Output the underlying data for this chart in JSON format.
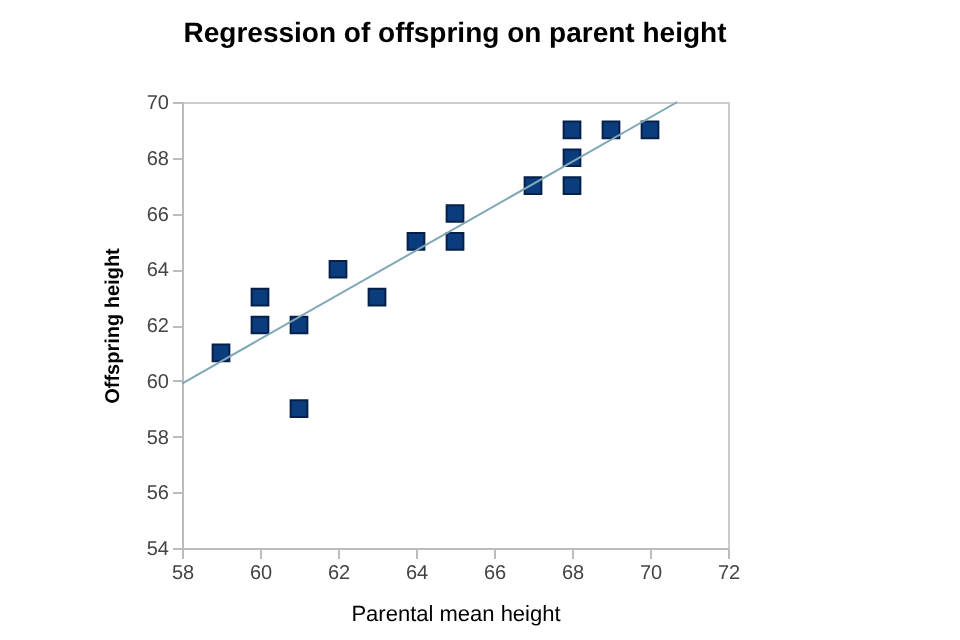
{
  "chart_data": {
    "type": "scatter",
    "title": "Regression of offspring on parent height",
    "xlabel": "Parental mean height",
    "ylabel": "Offspring height",
    "x": [
      59,
      60,
      60,
      61,
      61,
      62,
      63,
      64,
      65,
      65,
      67,
      68,
      68,
      68,
      69,
      70
    ],
    "series": [
      {
        "color": "#0b3c7d",
        "marker": "square",
        "values": [
          61,
          63,
          62,
          62,
          59,
          64,
          63,
          65,
          66,
          65,
          67,
          69,
          68,
          67,
          69,
          69
        ]
      },
      {
        "type": "line",
        "color": "#7fa7b5",
        "x": [
          58,
          70.7
        ],
        "values": [
          59.9,
          70
        ]
      }
    ],
    "xlim": [
      58,
      72
    ],
    "xticks": [
      58,
      60,
      62,
      64,
      66,
      68,
      70,
      72
    ],
    "ylim": [
      54,
      70
    ],
    "yticks": [
      54,
      56,
      58,
      60,
      62,
      64,
      66,
      68,
      70
    ],
    "grid": false,
    "legend": false
  }
}
